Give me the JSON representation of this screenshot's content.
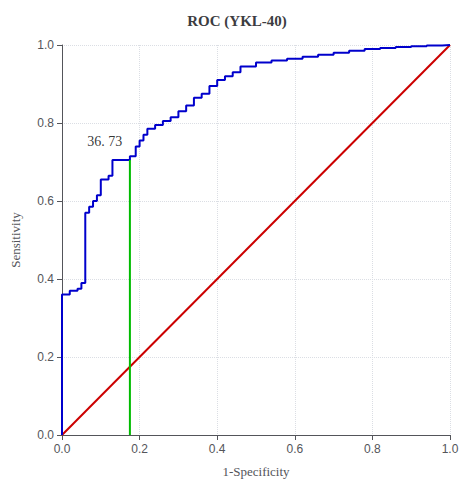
{
  "chart_data": {
    "type": "line",
    "title": "ROC (YKL-40)",
    "xlabel": "1-Specificity",
    "ylabel": "Sensitivity",
    "grid": true,
    "xlim": [
      0.0,
      1.0
    ],
    "ylim": [
      0.0,
      1.0
    ],
    "xticks": [
      {
        "value": 0.0,
        "label": "0.0"
      },
      {
        "value": 0.2,
        "label": "0.2"
      },
      {
        "value": 0.4,
        "label": "0.4"
      },
      {
        "value": 0.6,
        "label": "0.6"
      },
      {
        "value": 0.8,
        "label": "0.8"
      },
      {
        "value": 1.0,
        "label": "1.0"
      }
    ],
    "yticks": [
      {
        "value": 0.0,
        "label": "0.0"
      },
      {
        "value": 0.2,
        "label": "0.2"
      },
      {
        "value": 0.4,
        "label": "0.4"
      },
      {
        "value": 0.6,
        "label": "0.6"
      },
      {
        "value": 0.8,
        "label": "0.8"
      },
      {
        "value": 1.0,
        "label": "1.0"
      }
    ],
    "annotations": [
      {
        "text": "36. 73",
        "x": 0.065,
        "y": 0.735
      }
    ],
    "series": [
      {
        "color": "#CC0000",
        "x": [
          0,
          1
        ],
        "values": [
          0,
          1
        ]
      },
      {
        "color": "#0000CC",
        "x": [
          0.0,
          0.0,
          0.0,
          0.0,
          0.02,
          0.02,
          0.04,
          0.04,
          0.05,
          0.05,
          0.06,
          0.06,
          0.07,
          0.07,
          0.08,
          0.08,
          0.09,
          0.09,
          0.1,
          0.1,
          0.12,
          0.12,
          0.13,
          0.13,
          0.175,
          0.175,
          0.19,
          0.19,
          0.2,
          0.2,
          0.21,
          0.21,
          0.22,
          0.22,
          0.24,
          0.24,
          0.26,
          0.26,
          0.28,
          0.28,
          0.3,
          0.3,
          0.32,
          0.32,
          0.34,
          0.34,
          0.36,
          0.36,
          0.38,
          0.38,
          0.4,
          0.4,
          0.42,
          0.42,
          0.44,
          0.44,
          0.46,
          0.46,
          0.5,
          0.5,
          0.54,
          0.54,
          0.58,
          0.58,
          0.62,
          0.62,
          0.66,
          0.66,
          0.7,
          0.7,
          0.74,
          0.74,
          0.78,
          0.78,
          0.82,
          0.82,
          0.86,
          0.86,
          0.9,
          0.9,
          0.94,
          0.94,
          0.98,
          0.98,
          1.0
        ],
        "values": [
          0.0,
          0.09,
          0.09,
          0.36,
          0.36,
          0.37,
          0.37,
          0.375,
          0.375,
          0.39,
          0.39,
          0.57,
          0.57,
          0.585,
          0.585,
          0.6,
          0.6,
          0.615,
          0.615,
          0.655,
          0.655,
          0.665,
          0.665,
          0.705,
          0.705,
          0.715,
          0.715,
          0.74,
          0.74,
          0.755,
          0.755,
          0.77,
          0.77,
          0.785,
          0.785,
          0.795,
          0.795,
          0.805,
          0.805,
          0.815,
          0.815,
          0.83,
          0.83,
          0.845,
          0.845,
          0.865,
          0.865,
          0.875,
          0.875,
          0.895,
          0.895,
          0.91,
          0.91,
          0.92,
          0.92,
          0.93,
          0.93,
          0.945,
          0.945,
          0.955,
          0.955,
          0.96,
          0.96,
          0.965,
          0.965,
          0.97,
          0.97,
          0.975,
          0.975,
          0.98,
          0.98,
          0.985,
          0.985,
          0.99,
          0.99,
          0.992,
          0.992,
          0.995,
          0.995,
          0.997,
          0.997,
          0.999,
          0.999,
          1.0,
          1.0
        ]
      },
      {
        "color": "#00BB00",
        "x": [
          0.175,
          0.175
        ],
        "values": [
          0.0,
          0.705
        ]
      }
    ]
  }
}
